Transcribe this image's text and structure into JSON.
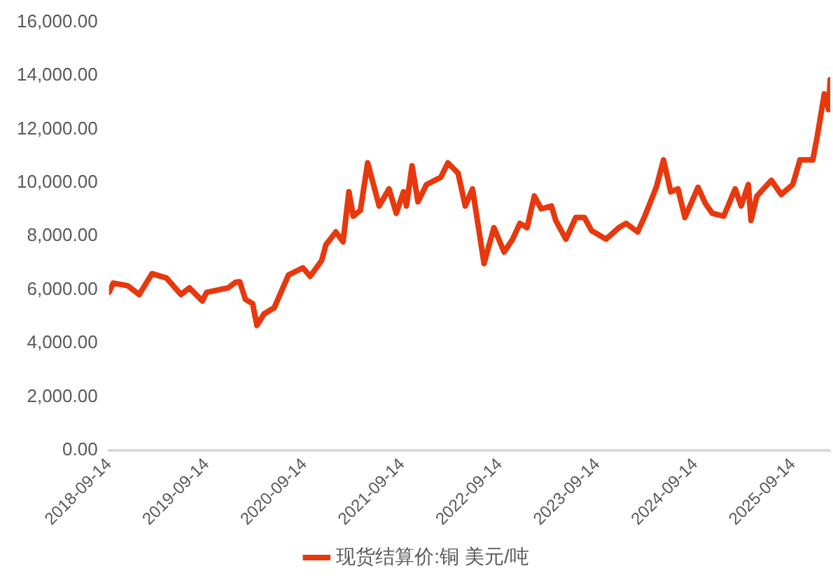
{
  "chart_data": {
    "type": "line",
    "legend": "bottom",
    "grid": false,
    "marker": "none",
    "line_style": "solid",
    "xlim": [
      "2018-09-14",
      "2026-01-31"
    ],
    "xticks": [
      "2018-09-14",
      "2019-09-14",
      "2020-09-14",
      "2021-09-14",
      "2022-09-14",
      "2023-09-14",
      "2024-09-14",
      "2025-09-14"
    ],
    "ylim": [
      0,
      16000
    ],
    "yticks": [
      {
        "value": 0,
        "label": "0.00"
      },
      {
        "value": 2000,
        "label": "2,000.00"
      },
      {
        "value": 4000,
        "label": "4,000.00"
      },
      {
        "value": 6000,
        "label": "6,000.00"
      },
      {
        "value": 8000,
        "label": "8,000.00"
      },
      {
        "value": 10000,
        "label": "10,000.00"
      },
      {
        "value": 12000,
        "label": "12,000.00"
      },
      {
        "value": 14000,
        "label": "14,000.00"
      },
      {
        "value": 16000,
        "label": "16,000.00"
      }
    ],
    "x": [
      "2018-09-14",
      "2018-09-30",
      "2018-11-23",
      "2019-01-05",
      "2019-02-22",
      "2019-04-17",
      "2019-06-10",
      "2019-07-12",
      "2019-08-29",
      "2019-09-14",
      "2019-12-04",
      "2019-12-31",
      "2020-01-16",
      "2020-02-06",
      "2020-03-04",
      "2020-03-20",
      "2020-04-16",
      "2020-05-24",
      "2020-07-16",
      "2020-09-08",
      "2020-10-05",
      "2020-11-17",
      "2020-12-03",
      "2021-01-09",
      "2021-02-05",
      "2021-02-27",
      "2021-03-15",
      "2021-04-11",
      "2021-05-08",
      "2021-06-20",
      "2021-07-27",
      "2021-08-23",
      "2021-09-19",
      "2021-09-30",
      "2021-10-21",
      "2021-11-12",
      "2021-12-14",
      "2022-02-05",
      "2022-03-04",
      "2022-04-11",
      "2022-05-08",
      "2022-06-04",
      "2022-07-17",
      "2022-08-23",
      "2022-09-30",
      "2022-11-01",
      "2022-11-28",
      "2022-12-25",
      "2023-01-21",
      "2023-02-16",
      "2023-03-26",
      "2023-04-11",
      "2023-05-19",
      "2023-06-25",
      "2023-07-27",
      "2023-08-23",
      "2023-10-16",
      "2023-12-03",
      "2023-12-30",
      "2024-02-11",
      "2024-03-09",
      "2024-04-21",
      "2024-05-18",
      "2024-06-14",
      "2024-07-11",
      "2024-08-06",
      "2024-09-24",
      "2024-10-21",
      "2024-11-16",
      "2024-12-29",
      "2025-02-10",
      "2025-03-04",
      "2025-03-31",
      "2025-04-10",
      "2025-05-02",
      "2025-06-25",
      "2025-08-01",
      "2025-09-13",
      "2025-10-10",
      "2025-11-27",
      "2025-12-13",
      "2025-12-24",
      "2026-01-09",
      "2026-01-25",
      "2026-01-31"
    ],
    "series": [
      {
        "name": "现货结算价:铜 美元/吨",
        "color": "#e8380d",
        "values": [
          5900,
          6250,
          6150,
          5820,
          6600,
          6440,
          5820,
          6070,
          5580,
          5900,
          6070,
          6280,
          6300,
          5640,
          5480,
          4670,
          5100,
          5330,
          6550,
          6820,
          6500,
          7090,
          7680,
          8160,
          7790,
          9660,
          8750,
          8970,
          10740,
          9130,
          9770,
          8860,
          9660,
          9130,
          10630,
          9290,
          9930,
          10200,
          10740,
          10360,
          9130,
          9770,
          6980,
          8320,
          7410,
          7890,
          8480,
          8320,
          9500,
          9020,
          9130,
          8590,
          7890,
          8700,
          8700,
          8210,
          7890,
          8320,
          8480,
          8160,
          8750,
          9830,
          10850,
          9660,
          9770,
          8700,
          9830,
          9230,
          8860,
          8750,
          9770,
          9130,
          9930,
          8590,
          9500,
          10090,
          9560,
          9930,
          10850,
          10850,
          11700,
          12350,
          13320,
          12730,
          13850
        ]
      }
    ]
  }
}
